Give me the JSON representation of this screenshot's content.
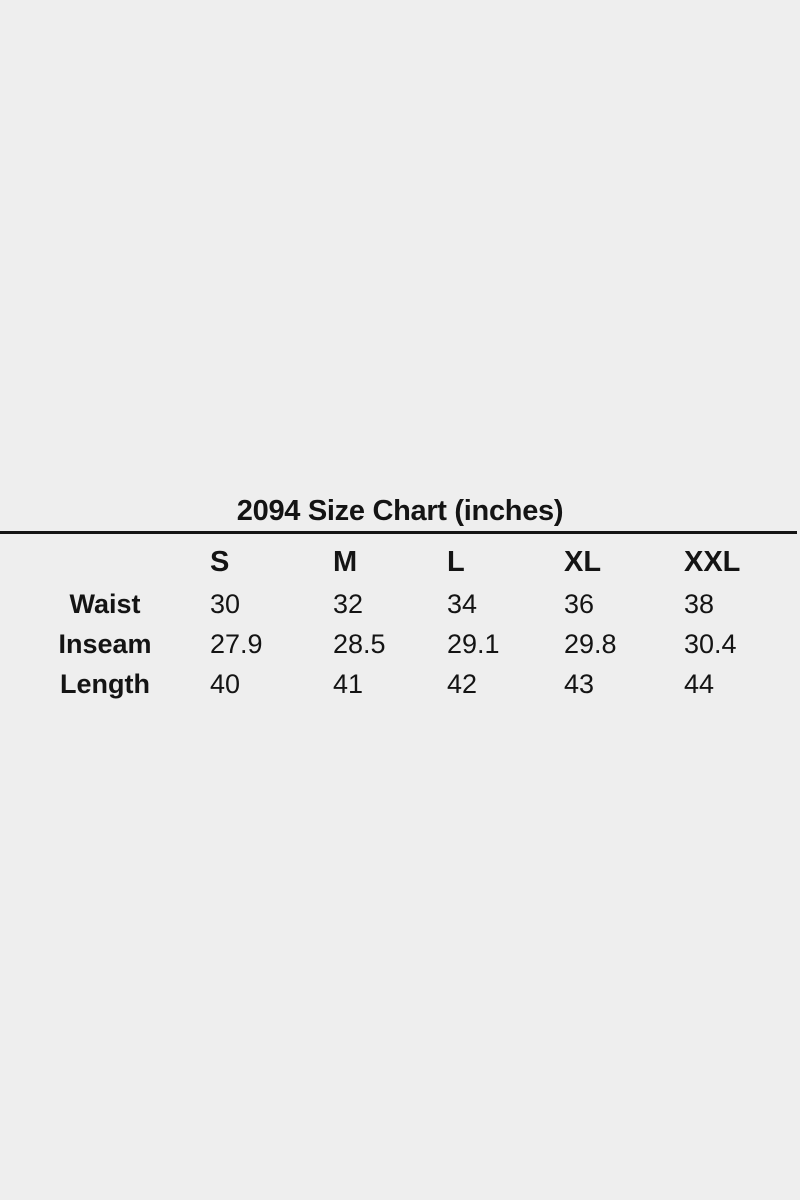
{
  "page": {
    "background_color": "#eeeeee",
    "text_color": "#141414"
  },
  "size_chart": {
    "title": "2094 Size Chart (inches)",
    "unit": "inches",
    "columns": [
      "S",
      "M",
      "L",
      "XL",
      "XXL"
    ],
    "rows": [
      {
        "label": "Waist",
        "values": [
          "30",
          "32",
          "34",
          "36",
          "38"
        ]
      },
      {
        "label": "Inseam",
        "values": [
          "27.9",
          "28.5",
          "29.1",
          "29.8",
          "30.4"
        ]
      },
      {
        "label": "Length",
        "values": [
          "40",
          "41",
          "42",
          "43",
          "44"
        ]
      }
    ]
  },
  "chart_data": {
    "type": "table",
    "title": "2094 Size Chart (inches)",
    "columns": [
      "",
      "S",
      "M",
      "L",
      "XL",
      "XXL"
    ],
    "rows": [
      [
        "Waist",
        30,
        32,
        34,
        36,
        38
      ],
      [
        "Inseam",
        27.9,
        28.5,
        29.1,
        29.8,
        30.4
      ],
      [
        "Length",
        40,
        41,
        42,
        43,
        44
      ]
    ]
  }
}
